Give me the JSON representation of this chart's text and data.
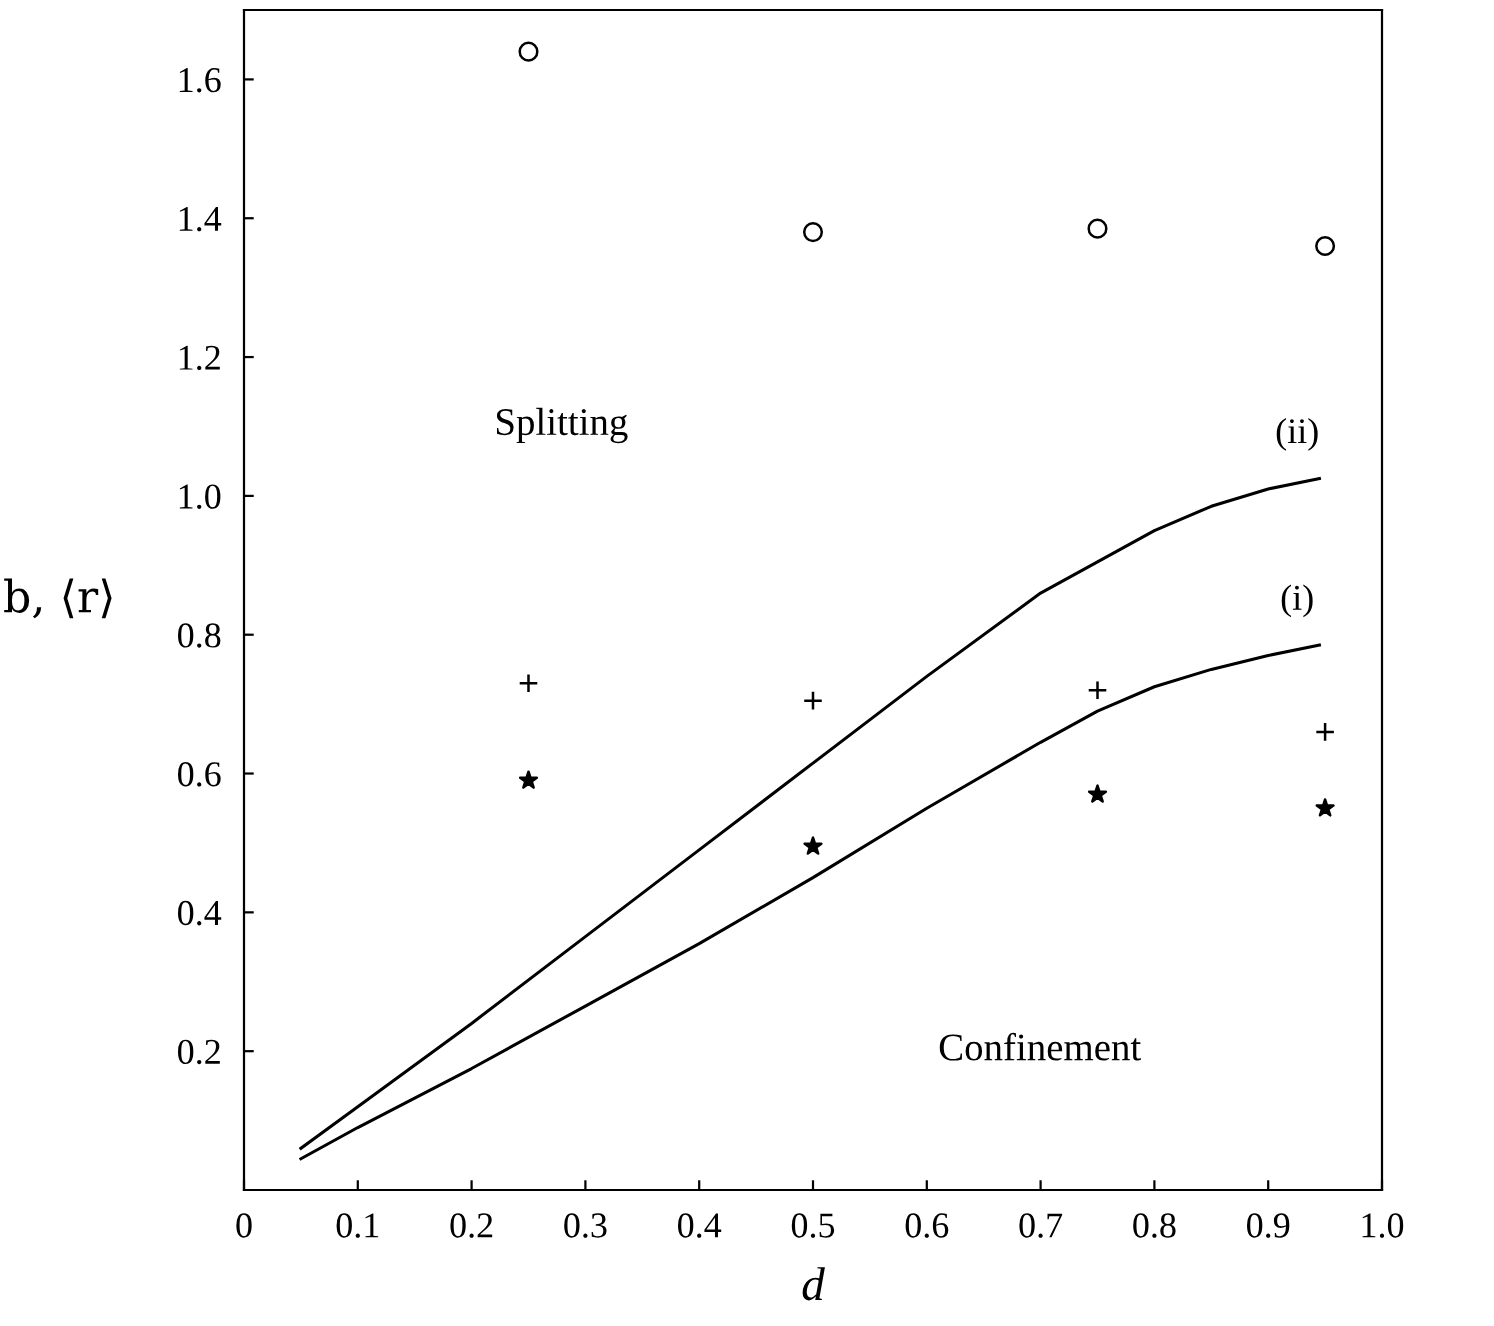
{
  "chart_data": {
    "type": "scatter",
    "xlabel": "d",
    "ylabel": "b, ⟨r⟩",
    "xlim": [
      0,
      1.0
    ],
    "xticks": [
      0,
      0.1,
      0.2,
      0.3,
      0.4,
      0.5,
      0.6,
      0.7,
      0.8,
      0.9,
      {
        "value": 1.0,
        "label": "1.0"
      }
    ],
    "ylim": [
      0,
      1.7
    ],
    "yticks": [
      0.2,
      0.4,
      0.6,
      0.8,
      {
        "value": 1.0,
        "label": "1.0"
      },
      1.2,
      1.4,
      1.6
    ],
    "grid": false,
    "legend": false,
    "annotations": [
      "Splitting",
      "Confinement"
    ],
    "series": [
      {
        "marker": "circle",
        "color": "#000000",
        "x": [
          0.25,
          0.5,
          0.75,
          0.95
        ],
        "values": [
          1.64,
          1.38,
          1.385,
          1.36
        ]
      },
      {
        "marker": "cross",
        "color": "#000000",
        "x": [
          0.25,
          0.5,
          0.75,
          0.95
        ],
        "values": [
          0.73,
          0.705,
          0.72,
          0.66
        ]
      },
      {
        "marker": "star",
        "color": "#000000",
        "x": [
          0.25,
          0.5,
          0.75,
          0.95
        ],
        "values": [
          0.59,
          0.495,
          0.57,
          0.55
        ]
      },
      {
        "type": "line",
        "name": "(i)",
        "color": "#000000",
        "line_style": "solid",
        "x": [
          0.05,
          0.1,
          0.2,
          0.3,
          0.4,
          0.5,
          0.6,
          0.7,
          0.75,
          0.8,
          0.85,
          0.9,
          0.945
        ],
        "values": [
          0.045,
          0.09,
          0.175,
          0.265,
          0.355,
          0.45,
          0.55,
          0.645,
          0.69,
          0.725,
          0.75,
          0.77,
          0.785
        ]
      },
      {
        "type": "line",
        "name": "(ii)",
        "color": "#000000",
        "line_style": "solid",
        "x": [
          0.05,
          0.1,
          0.2,
          0.3,
          0.4,
          0.5,
          0.6,
          0.7,
          0.75,
          0.8,
          0.85,
          0.9,
          0.945
        ],
        "values": [
          0.06,
          0.12,
          0.24,
          0.365,
          0.49,
          0.615,
          0.74,
          0.86,
          0.905,
          0.95,
          0.985,
          1.01,
          1.025
        ]
      }
    ]
  }
}
